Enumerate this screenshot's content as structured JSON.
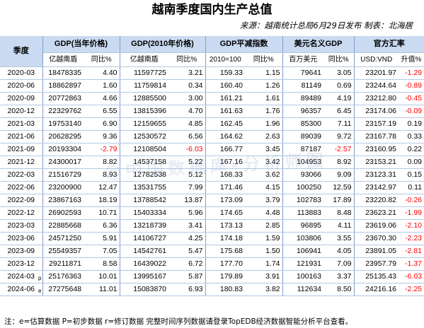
{
  "title": "越南季度国内生产总值",
  "subtitle": "来源：越南统计总局6月29日发布  制表：北海居",
  "headers": {
    "season": "季度",
    "gdp_current": "GDP(当年价格)",
    "gdp_2010": "GDP(2010年价格)",
    "deflator": "GDP平减指数",
    "usd_gdp": "美元名义GDP",
    "fx": "官方汇率"
  },
  "subheaders": [
    "亿越南盾",
    "同比%",
    "亿越南盾",
    "同比%",
    "2010=100",
    "同比%",
    "百万美元",
    "同比%",
    "USD:VND",
    "升值%"
  ],
  "watermark": "@中国数据库-分析师图",
  "rows": [
    {
      "q": "2020-03",
      "m": "",
      "c": [
        "18478335",
        "4.40",
        "11597725",
        "3.21",
        "159.33",
        "1.15",
        "79641",
        "3.05",
        "23201.97",
        "-1.29"
      ]
    },
    {
      "q": "2020-06",
      "m": "",
      "c": [
        "18862897",
        "1.60",
        "11759814",
        "0.34",
        "160.40",
        "1.26",
        "81149",
        "0.69",
        "23244.64",
        "-0.89"
      ]
    },
    {
      "q": "2020-09",
      "m": "",
      "c": [
        "20772863",
        "4.66",
        "12885500",
        "3.00",
        "161.21",
        "1.61",
        "89489",
        "4.19",
        "23212.80",
        "-0.45"
      ]
    },
    {
      "q": "2020-12",
      "m": "",
      "c": [
        "22329762",
        "6.55",
        "13815396",
        "4.70",
        "161.63",
        "1.76",
        "96357",
        "6.45",
        "23174.06",
        "-0.09"
      ]
    },
    {
      "q": "2021-03",
      "m": "",
      "c": [
        "19753140",
        "6.90",
        "12159655",
        "4.85",
        "162.45",
        "1.96",
        "85300",
        "7.11",
        "23157.19",
        "0.19"
      ]
    },
    {
      "q": "2021-06",
      "m": "",
      "c": [
        "20628295",
        "9.36",
        "12530572",
        "6.56",
        "164.62",
        "2.63",
        "89039",
        "9.72",
        "23167.78",
        "0.33"
      ]
    },
    {
      "q": "2021-09",
      "m": "",
      "c": [
        "20193304",
        "-2.79",
        "12108504",
        "-6.03",
        "166.77",
        "3.45",
        "87187",
        "-2.57",
        "23160.95",
        "0.22"
      ]
    },
    {
      "q": "2021-12",
      "m": "",
      "c": [
        "24300017",
        "8.82",
        "14537158",
        "5.22",
        "167.16",
        "3.42",
        "104953",
        "8.92",
        "23153.21",
        "0.09"
      ]
    },
    {
      "q": "2022-03",
      "m": "",
      "c": [
        "21516729",
        "8.93",
        "12782538",
        "5.12",
        "168.33",
        "3.62",
        "93066",
        "9.09",
        "23123.31",
        "0.15"
      ]
    },
    {
      "q": "2022-06",
      "m": "",
      "c": [
        "23200900",
        "12.47",
        "13531755",
        "7.99",
        "171.46",
        "4.15",
        "100250",
        "12.59",
        "23142.97",
        "0.11"
      ]
    },
    {
      "q": "2022-09",
      "m": "",
      "c": [
        "23867163",
        "18.19",
        "13788542",
        "13.87",
        "173.09",
        "3.79",
        "102783",
        "17.89",
        "23220.82",
        "-0.26"
      ]
    },
    {
      "q": "2022-12",
      "m": "",
      "c": [
        "26902593",
        "10.71",
        "15403334",
        "5.96",
        "174.65",
        "4.48",
        "113883",
        "8.48",
        "23623.21",
        "-1.99"
      ]
    },
    {
      "q": "2023-03",
      "m": "",
      "c": [
        "22885668",
        "6.36",
        "13218739",
        "3.41",
        "173.13",
        "2.85",
        "96895",
        "4.11",
        "23619.06",
        "-2.10"
      ]
    },
    {
      "q": "2023-06",
      "m": "",
      "c": [
        "24571250",
        "5.91",
        "14106727",
        "4.25",
        "174.18",
        "1.59",
        "103806",
        "3.55",
        "23670.30",
        "-2.23"
      ]
    },
    {
      "q": "2023-09",
      "m": "",
      "c": [
        "25549357",
        "7.05",
        "14542761",
        "5.47",
        "175.68",
        "1.50",
        "106941",
        "4.05",
        "23891.05",
        "-2.81"
      ]
    },
    {
      "q": "2023-12",
      "m": "",
      "c": [
        "29211871",
        "8.58",
        "16439022",
        "6.72",
        "177.70",
        "1.74",
        "121931",
        "7.09",
        "23957.79",
        "-1.37"
      ]
    },
    {
      "q": "2024-03",
      "m": "p",
      "c": [
        "25176363",
        "10.01",
        "13995167",
        "5.87",
        "179.89",
        "3.91",
        "100163",
        "3.37",
        "25135.43",
        "-6.03"
      ]
    },
    {
      "q": "2024-06",
      "m": "e",
      "c": [
        "27275648",
        "11.01",
        "15083870",
        "6.93",
        "180.83",
        "3.82",
        "112634",
        "8.50",
        "24216.16",
        "-2.25"
      ]
    }
  ],
  "footnote": "注：e=估算数据 P=初步数据 r=修订数据 完整时间序列数据请登录TopEDB经济数据智能分析平台查看。"
}
